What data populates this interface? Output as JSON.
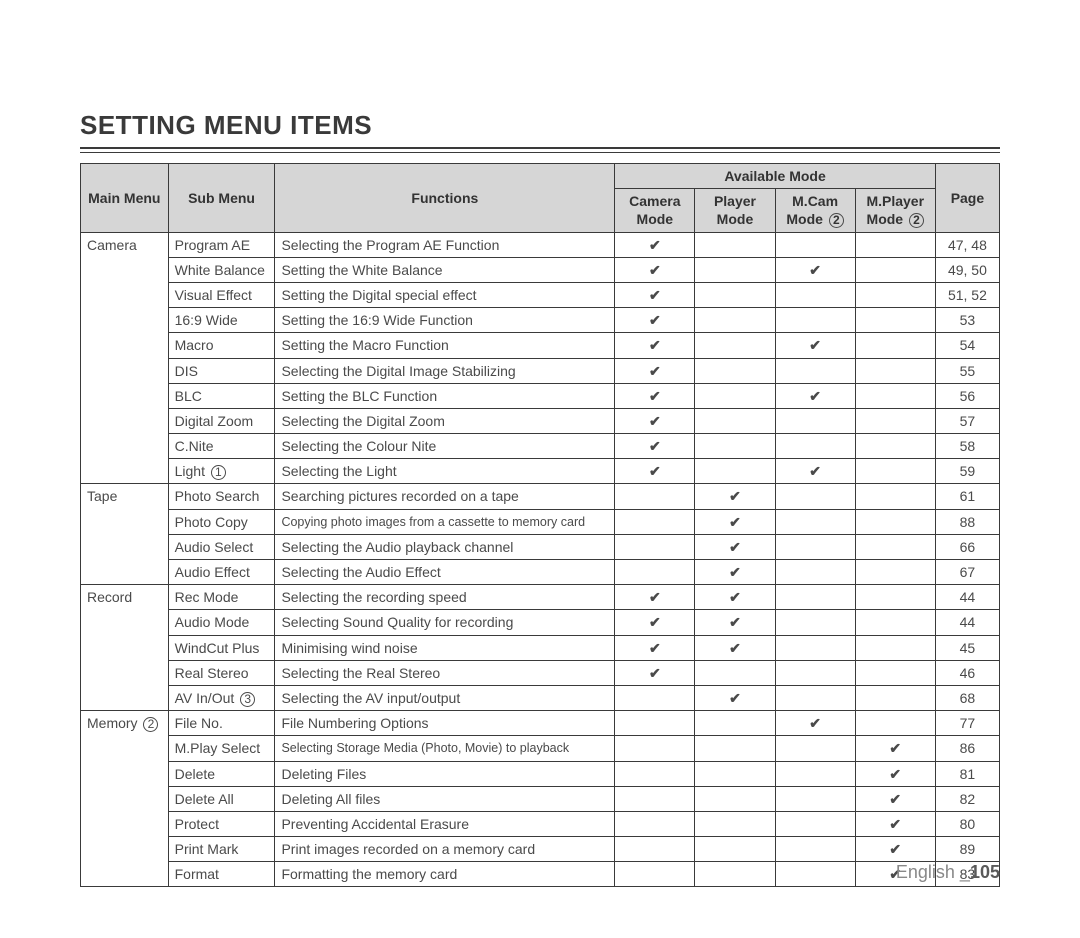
{
  "title": "SETTING MENU ITEMS",
  "header": {
    "main_menu": "Main Menu",
    "sub_menu": "Sub Menu",
    "functions": "Functions",
    "available_mode": "Available Mode",
    "camera_mode": "Camera Mode",
    "player_mode": "Player Mode",
    "mcam_mode_pre": "M.Cam",
    "mcam_mode_line2": "Mode",
    "mcam_circ": "2",
    "mplayer_mode_pre": "M.Player",
    "mplayer_mode_line2": "Mode",
    "mplayer_circ": "2",
    "page": "Page"
  },
  "groups": [
    {
      "main": "Camera",
      "rows": [
        {
          "sub": "Program AE",
          "func": "Selecting the Program AE Function",
          "cam": true,
          "player": false,
          "mcam": false,
          "mplayer": false,
          "page": "47, 48"
        },
        {
          "sub": "White Balance",
          "func": "Setting the White Balance",
          "cam": true,
          "player": false,
          "mcam": true,
          "mplayer": false,
          "page": "49, 50"
        },
        {
          "sub": "Visual Effect",
          "func": "Setting the Digital special effect",
          "cam": true,
          "player": false,
          "mcam": false,
          "mplayer": false,
          "page": "51, 52"
        },
        {
          "sub": "16:9 Wide",
          "func": "Setting the 16:9 Wide Function",
          "cam": true,
          "player": false,
          "mcam": false,
          "mplayer": false,
          "page": "53"
        },
        {
          "sub": "Macro",
          "func": "Setting the Macro Function",
          "cam": true,
          "player": false,
          "mcam": true,
          "mplayer": false,
          "page": "54"
        },
        {
          "sub": "DIS",
          "func": "Selecting the Digital Image Stabilizing",
          "cam": true,
          "player": false,
          "mcam": false,
          "mplayer": false,
          "page": "55"
        },
        {
          "sub": "BLC",
          "func": "Setting the BLC Function",
          "cam": true,
          "player": false,
          "mcam": true,
          "mplayer": false,
          "page": "56"
        },
        {
          "sub": "Digital Zoom",
          "func": "Selecting the Digital Zoom",
          "cam": true,
          "player": false,
          "mcam": false,
          "mplayer": false,
          "page": "57"
        },
        {
          "sub": "C.Nite",
          "func": "Selecting the Colour Nite",
          "cam": true,
          "player": false,
          "mcam": false,
          "mplayer": false,
          "page": "58"
        },
        {
          "sub": "Light",
          "sub_circ": "1",
          "func": "Selecting the Light",
          "cam": true,
          "player": false,
          "mcam": true,
          "mplayer": false,
          "page": "59"
        }
      ]
    },
    {
      "main": "Tape",
      "rows": [
        {
          "sub": "Photo Search",
          "func": "Searching pictures recorded on a tape",
          "cam": false,
          "player": true,
          "mcam": false,
          "mplayer": false,
          "page": "61"
        },
        {
          "sub": "Photo Copy",
          "func": "Copying photo images from a cassette to memory card",
          "func_small": true,
          "cam": false,
          "player": true,
          "mcam": false,
          "mplayer": false,
          "page": "88"
        },
        {
          "sub": "Audio Select",
          "func": "Selecting the Audio playback channel",
          "cam": false,
          "player": true,
          "mcam": false,
          "mplayer": false,
          "page": "66"
        },
        {
          "sub": "Audio Effect",
          "func": "Selecting the Audio Effect",
          "cam": false,
          "player": true,
          "mcam": false,
          "mplayer": false,
          "page": "67"
        }
      ]
    },
    {
      "main": "Record",
      "rows": [
        {
          "sub": "Rec Mode",
          "func": "Selecting the recording speed",
          "cam": true,
          "player": true,
          "mcam": false,
          "mplayer": false,
          "page": "44"
        },
        {
          "sub": "Audio Mode",
          "func": "Selecting Sound Quality for recording",
          "cam": true,
          "player": true,
          "mcam": false,
          "mplayer": false,
          "page": "44"
        },
        {
          "sub": "WindCut Plus",
          "func": "Minimising wind noise",
          "cam": true,
          "player": true,
          "mcam": false,
          "mplayer": false,
          "page": "45"
        },
        {
          "sub": "Real Stereo",
          "func": "Selecting the Real Stereo",
          "cam": true,
          "player": false,
          "mcam": false,
          "mplayer": false,
          "page": "46"
        },
        {
          "sub": "AV In/Out",
          "sub_circ": "3",
          "func": "Selecting the AV input/output",
          "cam": false,
          "player": true,
          "mcam": false,
          "mplayer": false,
          "page": "68"
        }
      ]
    },
    {
      "main": "Memory",
      "main_circ": "2",
      "rows": [
        {
          "sub": "File No.",
          "func": "File Numbering Options",
          "cam": false,
          "player": false,
          "mcam": true,
          "mplayer": false,
          "page": "77"
        },
        {
          "sub": "M.Play Select",
          "func": "Selecting Storage Media (Photo, Movie) to playback",
          "func_small": true,
          "cam": false,
          "player": false,
          "mcam": false,
          "mplayer": true,
          "page": "86"
        },
        {
          "sub": "Delete",
          "func": "Deleting Files",
          "cam": false,
          "player": false,
          "mcam": false,
          "mplayer": true,
          "page": "81"
        },
        {
          "sub": "Delete All",
          "func": "Deleting All files",
          "cam": false,
          "player": false,
          "mcam": false,
          "mplayer": true,
          "page": "82"
        },
        {
          "sub": "Protect",
          "func": "Preventing Accidental Erasure",
          "cam": false,
          "player": false,
          "mcam": false,
          "mplayer": true,
          "page": "80"
        },
        {
          "sub": "Print Mark",
          "func": "Print images recorded on a memory card",
          "cam": false,
          "player": false,
          "mcam": false,
          "mplayer": true,
          "page": "89"
        },
        {
          "sub": "Format",
          "func": "Formatting the memory card",
          "cam": false,
          "player": false,
          "mcam": false,
          "mplayer": true,
          "page": "83"
        }
      ]
    }
  ],
  "footer": {
    "lang": "English _",
    "page_no": "105"
  },
  "colors": {
    "header_bg": "#d6d6d6",
    "border": "#3a3a3a",
    "text": "#4a4a4a",
    "footer_text": "#888888"
  }
}
